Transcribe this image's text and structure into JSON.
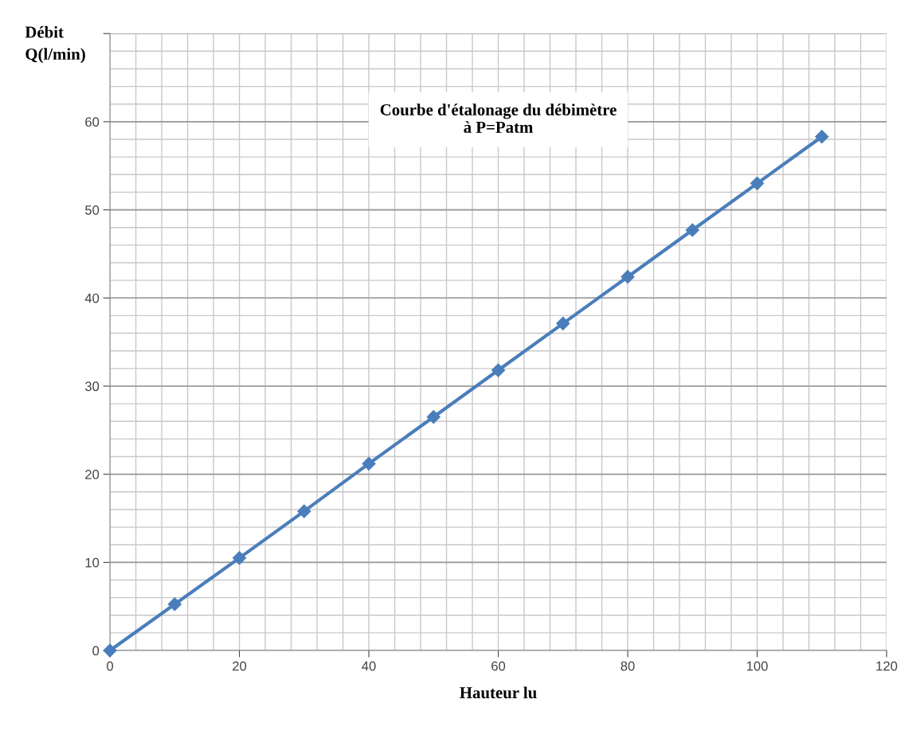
{
  "chart_data": {
    "type": "line",
    "title": "Courbe d'étalonage du débimètre\nà P=Patm",
    "xlabel": "Hauteur lu",
    "ylabel": "Débit\nQ(l/min)",
    "x": [
      0,
      10,
      20,
      30,
      40,
      50,
      60,
      70,
      80,
      90,
      100,
      110
    ],
    "series": [
      {
        "color": "#4a7ebb",
        "values": [
          0,
          5.25,
          10.5,
          15.8,
          21.2,
          26.5,
          31.8,
          37.1,
          42.4,
          47.7,
          53.0,
          58.3
        ]
      }
    ],
    "xlim": [
      0,
      120
    ],
    "xticks": [
      0,
      20,
      40,
      60,
      80,
      100,
      120
    ],
    "ylim": [
      0,
      70
    ],
    "yticks": [
      0,
      10,
      20,
      30,
      40,
      50,
      60,
      {
        "value": 70,
        "label": null
      }
    ],
    "grid": true,
    "marker": "diamond",
    "line_style": "solid"
  }
}
